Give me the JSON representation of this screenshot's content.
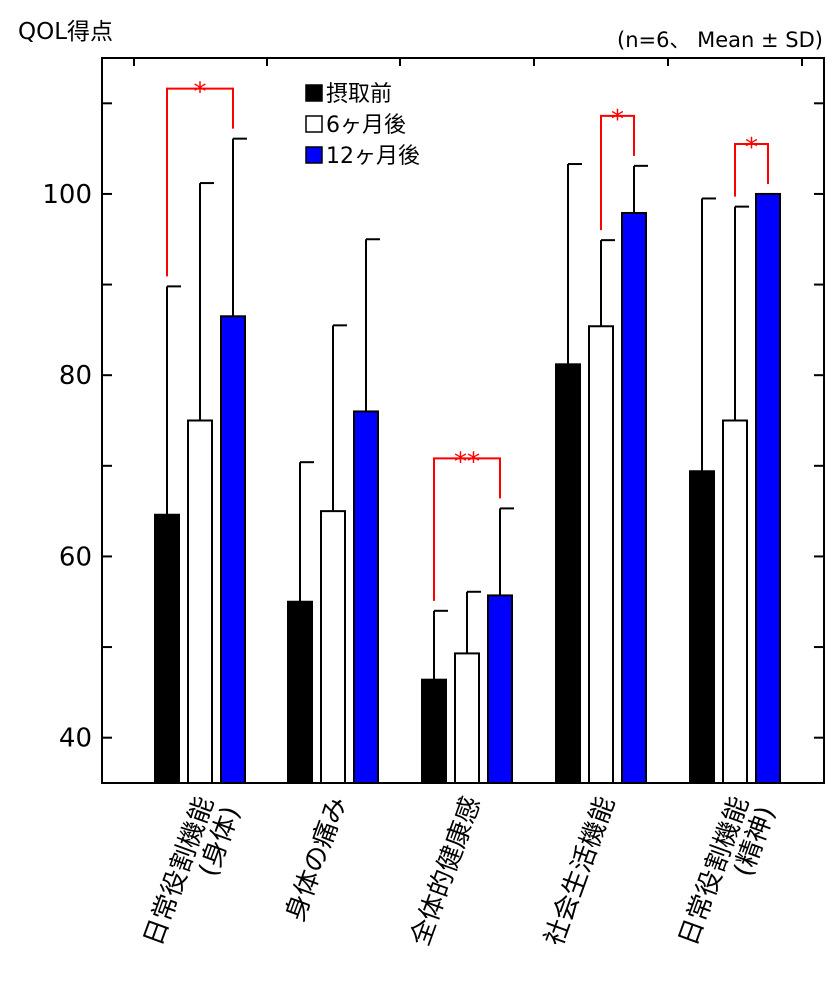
{
  "chart_data": {
    "type": "bar",
    "ylabel": "QOL得点",
    "note": "(n=6、 Mean ± SD)",
    "ylim": [
      35,
      115
    ],
    "yticks": [
      40,
      60,
      80,
      100
    ],
    "categories": [
      {
        "lines": [
          "日常役割機能",
          "(身体)"
        ]
      },
      {
        "lines": [
          "身体の痛み"
        ]
      },
      {
        "lines": [
          "全体的健康感"
        ]
      },
      {
        "lines": [
          "社会生活機能"
        ]
      },
      {
        "lines": [
          "日常役割機能",
          "(精神)"
        ]
      }
    ],
    "series": [
      {
        "name": "摂取前",
        "color": "#000000",
        "values": [
          64.6,
          55.0,
          46.4,
          81.2,
          69.4
        ],
        "sd": [
          25.2,
          15.4,
          7.6,
          22.1,
          30.1
        ]
      },
      {
        "name": "6ヶ月後",
        "color": "#ffffff",
        "values": [
          75.0,
          65.0,
          49.3,
          85.4,
          75.0
        ],
        "sd": [
          26.2,
          20.5,
          6.8,
          9.5,
          23.6
        ]
      },
      {
        "name": "12ヶ月後",
        "color": "#0000ff",
        "values": [
          86.5,
          76.0,
          55.7,
          97.9,
          100.0
        ],
        "sd": [
          19.6,
          19.0,
          9.6,
          5.2,
          0.0
        ]
      }
    ],
    "significance": [
      {
        "category": 0,
        "from": 0,
        "to": 2,
        "label": "*"
      },
      {
        "category": 2,
        "from": 0,
        "to": 2,
        "label": "**"
      },
      {
        "category": 3,
        "from": 1,
        "to": 2,
        "label": "*"
      },
      {
        "category": 4,
        "from": 1,
        "to": 2,
        "label": "*"
      }
    ],
    "legend_position": "top-left",
    "grid": false
  }
}
